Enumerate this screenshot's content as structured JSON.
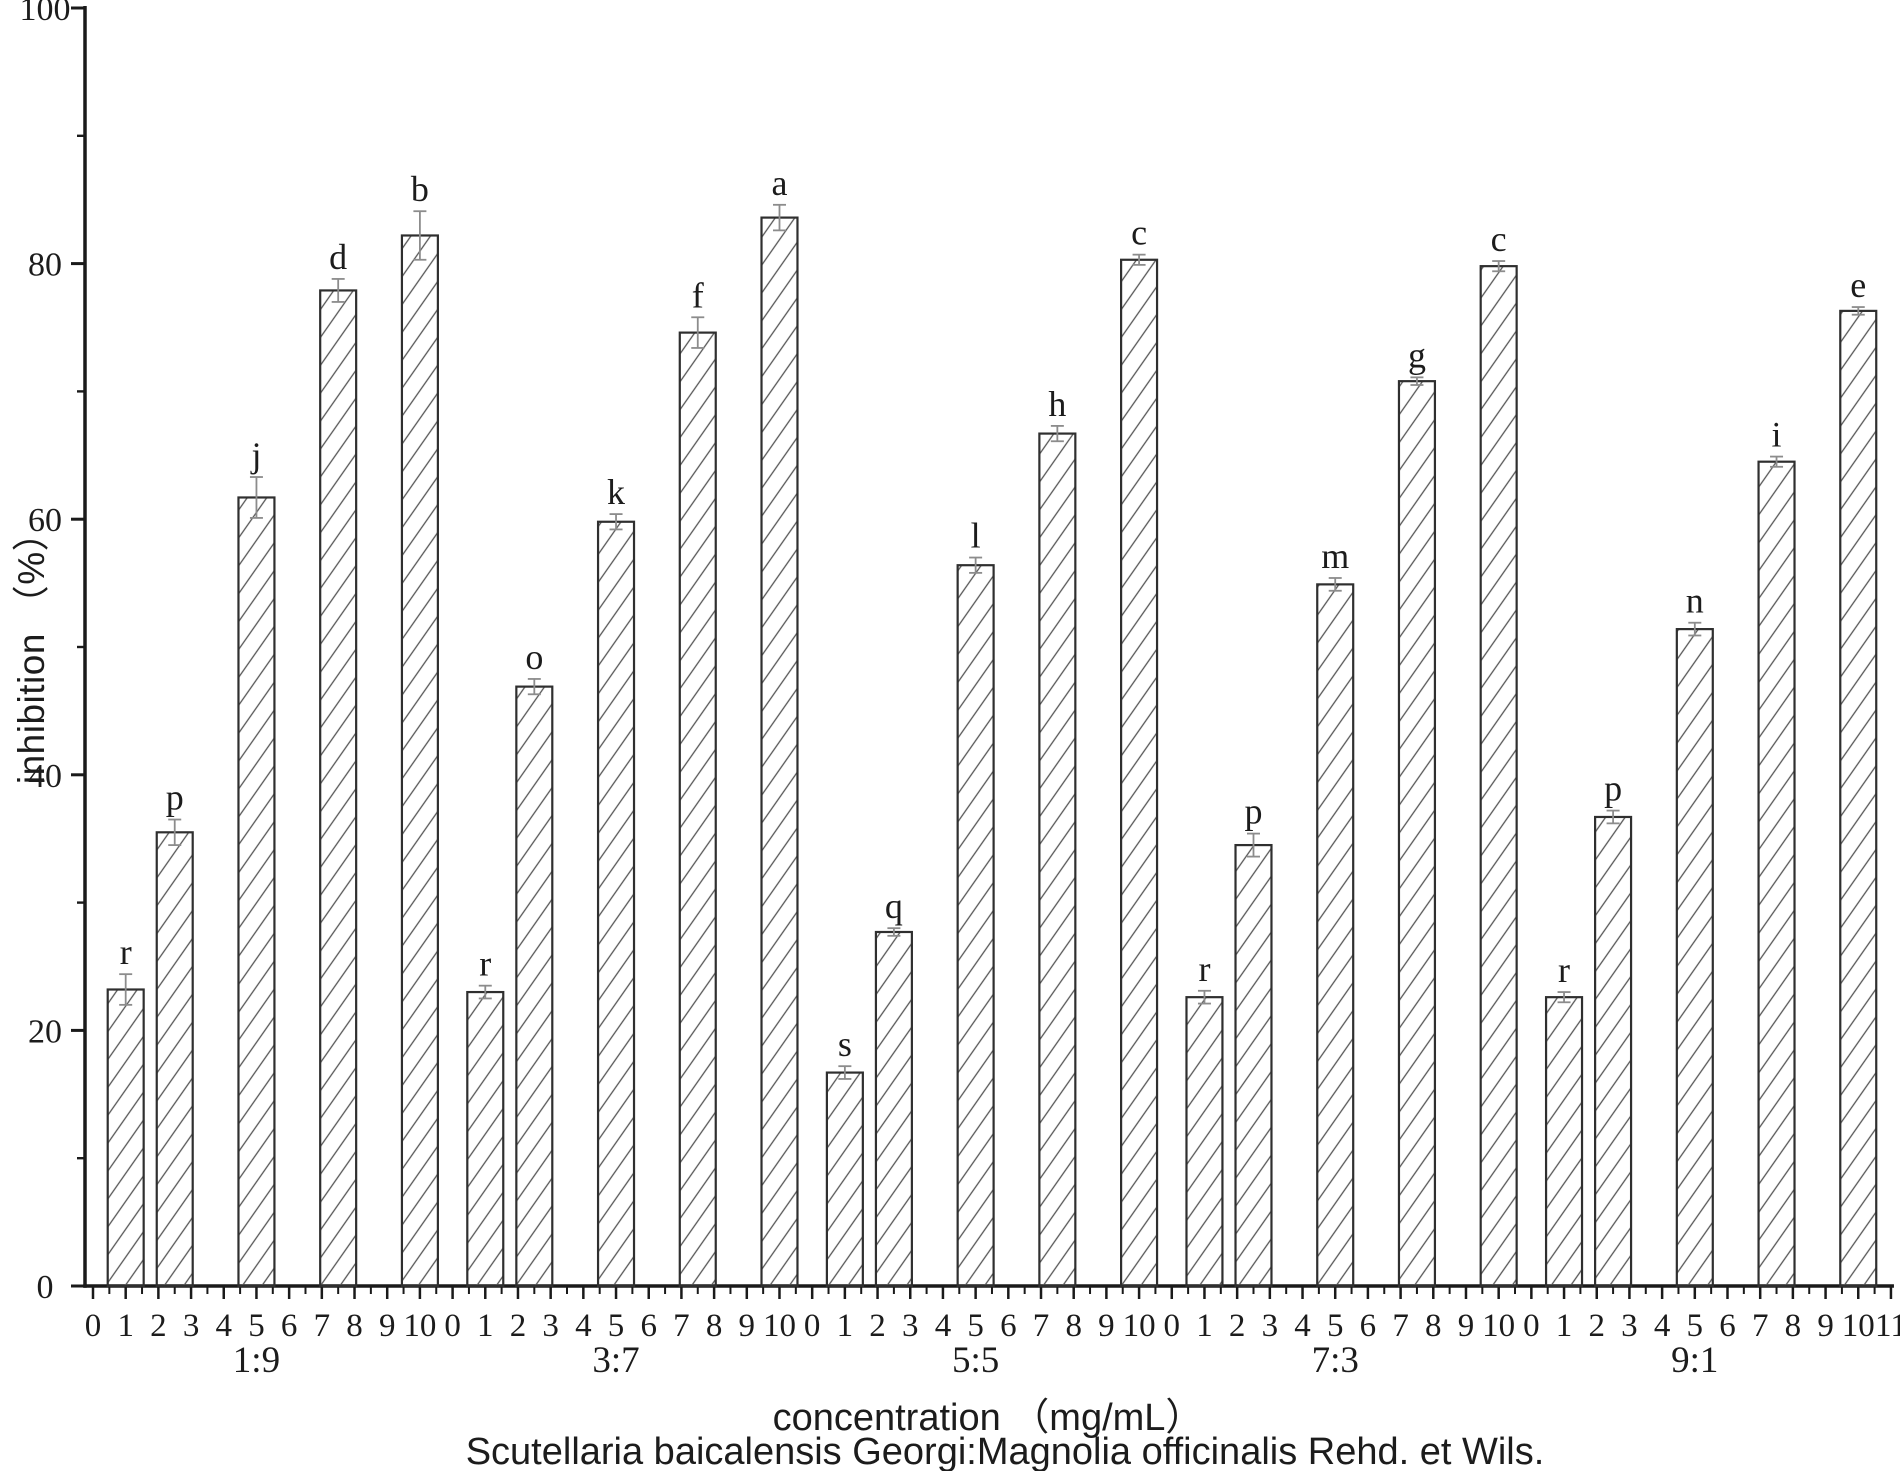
{
  "chart_data": {
    "type": "bar",
    "title": "",
    "ylabel": "inhibition （%）",
    "xlabel": "concentration （mg/mL）",
    "caption": "Scutellaria baicalensis Georgi:Magnolia officinalis Rehd. et Wils.",
    "ylim": [
      0,
      100
    ],
    "y_major_ticks": [
      0,
      20,
      40,
      60,
      80,
      100
    ],
    "y_minor_ticks": [
      10,
      30,
      50,
      70,
      90
    ],
    "x_tick_labels_per_group": [
      "0",
      "1",
      "2",
      "3",
      "4",
      "5",
      "6",
      "7",
      "8",
      "9",
      "10"
    ],
    "x_last_extra_tick_label": "11",
    "bar_offsets_in_group": [
      1,
      2.5,
      5,
      7.5,
      10
    ],
    "group_span_units": 10,
    "group_gap_units": 1,
    "bar_width_units": 1.1,
    "grid": "off",
    "legend": "none",
    "hatch_pattern": "forward-diagonal",
    "groups": [
      {
        "label": "1:9",
        "bars": [
          {
            "letter": "r",
            "value": 23.2,
            "error": 1.2
          },
          {
            "letter": "p",
            "value": 35.5,
            "error": 1.0
          },
          {
            "letter": "j",
            "value": 61.7,
            "error": 1.6
          },
          {
            "letter": "d",
            "value": 77.9,
            "error": 0.9
          },
          {
            "letter": "b",
            "value": 82.2,
            "error": 1.9
          }
        ]
      },
      {
        "label": "3:7",
        "bars": [
          {
            "letter": "r",
            "value": 23.0,
            "error": 0.5
          },
          {
            "letter": "o",
            "value": 46.9,
            "error": 0.6
          },
          {
            "letter": "k",
            "value": 59.8,
            "error": 0.6
          },
          {
            "letter": "f",
            "value": 74.6,
            "error": 1.2
          },
          {
            "letter": "a",
            "value": 83.6,
            "error": 1.0
          }
        ]
      },
      {
        "label": "5:5",
        "bars": [
          {
            "letter": "s",
            "value": 16.7,
            "error": 0.5
          },
          {
            "letter": "q",
            "value": 27.7,
            "error": 0.3
          },
          {
            "letter": "l",
            "value": 56.4,
            "error": 0.6
          },
          {
            "letter": "h",
            "value": 66.7,
            "error": 0.6
          },
          {
            "letter": "c",
            "value": 80.3,
            "error": 0.4
          }
        ]
      },
      {
        "label": "7:3",
        "bars": [
          {
            "letter": "r",
            "value": 22.6,
            "error": 0.5
          },
          {
            "letter": "p",
            "value": 34.5,
            "error": 0.9
          },
          {
            "letter": "m",
            "value": 54.9,
            "error": 0.5
          },
          {
            "letter": "g",
            "value": 70.8,
            "error": 0.3
          },
          {
            "letter": "c",
            "value": 79.8,
            "error": 0.4
          }
        ]
      },
      {
        "label": "9:1",
        "bars": [
          {
            "letter": "r",
            "value": 22.6,
            "error": 0.4
          },
          {
            "letter": "p",
            "value": 36.7,
            "error": 0.5
          },
          {
            "letter": "n",
            "value": 51.4,
            "error": 0.5
          },
          {
            "letter": "i",
            "value": 64.5,
            "error": 0.4
          },
          {
            "letter": "e",
            "value": 76.3,
            "error": 0.3
          }
        ]
      }
    ],
    "colors": {
      "background": "#ffffff",
      "axis": "#1a1a1a",
      "bar_outline": "#2f2f2f",
      "hatch_line": "#555555",
      "error_bar": "#8c8c8c",
      "text": "#1c1c1c"
    }
  }
}
